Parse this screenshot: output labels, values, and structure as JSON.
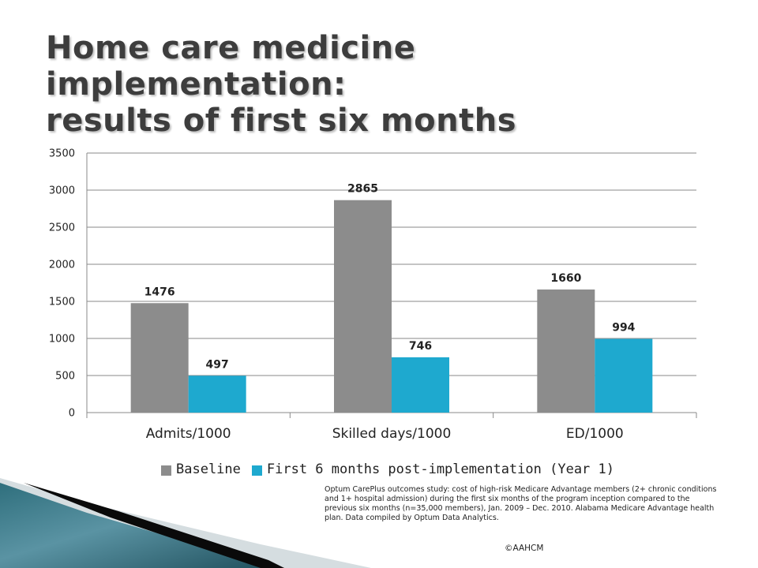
{
  "slide": {
    "title_line1": "Home care medicine implementation:",
    "title_line2": "results of first six months",
    "footnote": "Optum CarePlus outcomes study: cost of high-risk Medicare Advantage members (2+ chronic conditions and 1+ hospital admission) during the first six months of the program inception compared to the previous six months (n=35,000 members), Jan. 2009 – Dec. 2010. Alabama Medicare Advantage health plan. Data compiled by Optum Data Analytics.",
    "copyright": "©AAHCM"
  },
  "colors": {
    "baseline": "#8c8c8c",
    "post": "#1ea9cf",
    "title": "#3d3d3d",
    "grid": "#8a8a8a"
  },
  "chart_data": {
    "type": "bar",
    "categories": [
      "Admits/1000",
      "Skilled days/1000",
      "ED/1000"
    ],
    "series": [
      {
        "name": "Baseline",
        "values": [
          1476,
          2865,
          1660
        ]
      },
      {
        "name": "First 6 months post-implementation (Year 1)",
        "values": [
          497,
          746,
          994
        ]
      }
    ],
    "ylim": [
      0,
      3500
    ],
    "yticks": [
      0,
      500,
      1000,
      1500,
      2000,
      2500,
      3000,
      3500
    ],
    "grid": true,
    "legend_position": "bottom",
    "data_labels": true,
    "title": "",
    "xlabel": "",
    "ylabel": ""
  }
}
